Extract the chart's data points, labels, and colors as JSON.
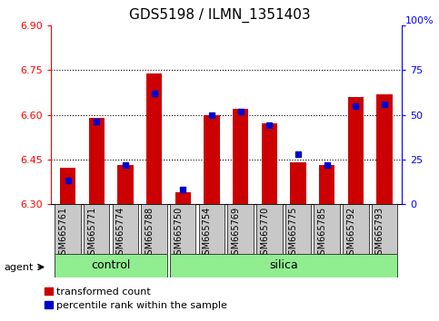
{
  "title": "GDS5198 / ILMN_1351403",
  "samples": [
    "GSM665761",
    "GSM665771",
    "GSM665774",
    "GSM665788",
    "GSM665750",
    "GSM665754",
    "GSM665769",
    "GSM665770",
    "GSM665775",
    "GSM665785",
    "GSM665792",
    "GSM665793"
  ],
  "red_values": [
    6.42,
    6.59,
    6.43,
    6.74,
    6.34,
    6.6,
    6.62,
    6.57,
    6.44,
    6.43,
    6.66,
    6.67
  ],
  "blue_values_pct": [
    13,
    46,
    22,
    62,
    8,
    50,
    52,
    44,
    28,
    22,
    55,
    56
  ],
  "control_count": 4,
  "y_min": 6.3,
  "y_max": 6.9,
  "y_ticks_left": [
    6.3,
    6.45,
    6.6,
    6.75,
    6.9
  ],
  "y_ticks_right": [
    0,
    25,
    50,
    75,
    100
  ],
  "bar_color": "#CC0000",
  "dot_color": "#0000CC",
  "group_color": "#90EE90",
  "title_fontsize": 11,
  "sample_fontsize": 7,
  "axis_fontsize": 8,
  "legend_fontsize": 8,
  "agent_label": "agent",
  "group_labels": [
    "control",
    "silica"
  ],
  "legend_red": "transformed count",
  "legend_blue": "percentile rank within the sample"
}
